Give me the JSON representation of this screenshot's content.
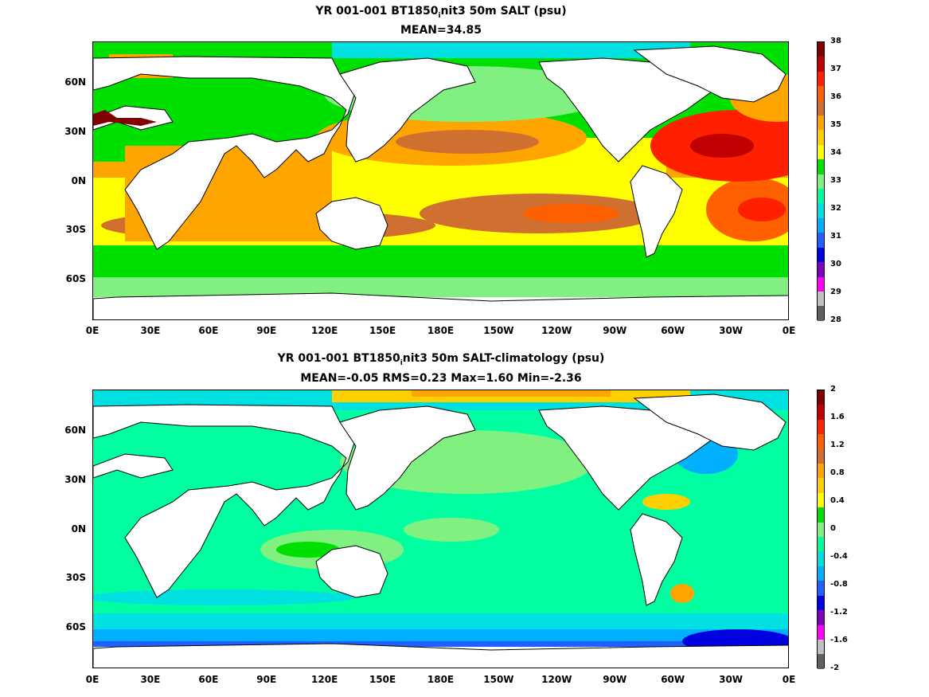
{
  "panels": [
    {
      "title_line1_a": "YR 001-001 BT1850",
      "title_sub": "i",
      "title_line1_b": "nit3 50m SALT (psu)",
      "title_line2": "MEAN=34.85",
      "colorbar": {
        "ticks": [
          "38",
          "37",
          "36",
          "35",
          "34",
          "33",
          "32",
          "31",
          "30",
          "29",
          "28"
        ],
        "colors": [
          "#800000",
          "#c00000",
          "#ff2000",
          "#ff6000",
          "#d07030",
          "#ffa500",
          "#ffd000",
          "#ffff00",
          "#00e000",
          "#80f080",
          "#00ffa0",
          "#00e0e0",
          "#00b0ff",
          "#2060ff",
          "#0000e0",
          "#8000c0",
          "#ff00ff",
          "#c0c0c0",
          "#606060"
        ]
      }
    },
    {
      "title_line1_a": "YR 001-001 BT1850",
      "title_sub": "i",
      "title_line1_b": "nit3 50m SALT-climatology (psu)",
      "title_line2": "MEAN=-0.05   RMS=0.23   Max=1.60   Min=-2.36",
      "colorbar": {
        "ticks": [
          "2",
          "1.6",
          "1.2",
          "0.8",
          "0.4",
          "0",
          "-0.4",
          "-0.8",
          "-1.2",
          "-1.6",
          "-2"
        ],
        "colors": [
          "#800000",
          "#c00000",
          "#ff2000",
          "#ff6000",
          "#d07030",
          "#ffa500",
          "#ffd000",
          "#ffff00",
          "#00e000",
          "#80f080",
          "#00ffa0",
          "#00e0e0",
          "#00b0ff",
          "#2060ff",
          "#0000e0",
          "#8000c0",
          "#ff00ff",
          "#c0c0c0",
          "#606060"
        ]
      }
    }
  ],
  "lat_labels": [
    "60N",
    "30N",
    "0N",
    "30S",
    "60S"
  ],
  "lon_labels": [
    "0E",
    "30E",
    "60E",
    "90E",
    "120E",
    "150E",
    "180E",
    "150W",
    "120W",
    "90W",
    "60W",
    "30W",
    "0E"
  ]
}
